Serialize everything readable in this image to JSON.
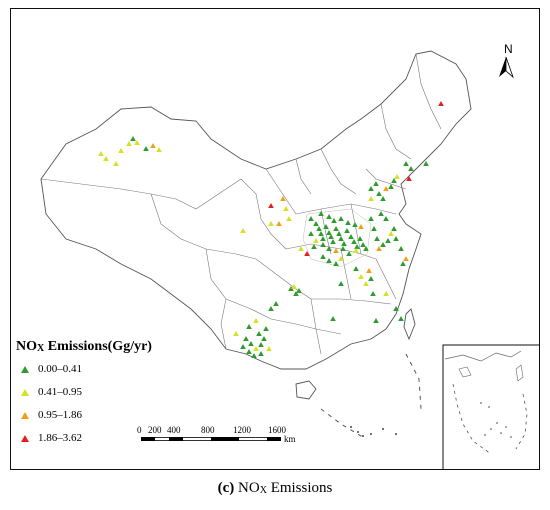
{
  "legend": {
    "title_main": "NO",
    "title_sub": "X",
    "title_rest": " Emissions(Gg/yr)",
    "items": [
      {
        "label": "0.00–0.41",
        "color": "#2e9b2e"
      },
      {
        "label": "0.41–0.95",
        "color": "#d6e024"
      },
      {
        "label": "0.95–1.86",
        "color": "#f0a018"
      },
      {
        "label": "1.86–3.62",
        "color": "#e02020"
      }
    ]
  },
  "scale_bar": {
    "ticks": [
      "0",
      "200",
      "400",
      "800",
      "1200",
      "1600"
    ],
    "unit": "km"
  },
  "north_arrow": {
    "label": "N",
    "icon": "north-arrow-icon"
  },
  "caption": {
    "panel": "(c)",
    "text_main": "NO",
    "text_sub": "X",
    "text_rest": " Emissions"
  }
}
